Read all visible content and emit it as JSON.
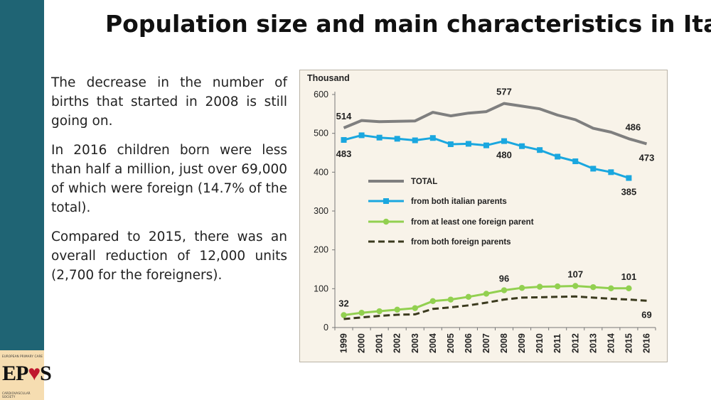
{
  "slide": {
    "title": "Population size and main characteristics in Italy",
    "paragraphs": [
      "The decrease in the number of births that started in 2008 is still going on.",
      "In 2016 children born were less than half a million, just over 69,000 of which were foreign (14.7% of the total).",
      "Compared to 2015, there was an overall reduction of 12,000 units (2,700 for the foreigners)."
    ],
    "logo": {
      "text": "EP",
      "heart": "♥",
      "text2": "S",
      "ring_top": "EUROPEAN PRIMARY CARE",
      "ring_bottom": "CARDIOVASCULAR SOCIETY"
    }
  },
  "colors": {
    "sidebar": "#1f6474",
    "total": "#7f7f7f",
    "italian": "#1aa7df",
    "foreign_one": "#92d050",
    "foreign_both": "#3b3a1e"
  },
  "chart_data": {
    "type": "line",
    "ylabel": "Thousand",
    "ylim": [
      0,
      600
    ],
    "yticks": [
      0,
      100,
      200,
      300,
      400,
      500,
      600
    ],
    "x": [
      "1999",
      "2000",
      "2001",
      "2002",
      "2003",
      "2004",
      "2005",
      "2006",
      "2007",
      "2008",
      "2009",
      "2010",
      "2011",
      "2012",
      "2013",
      "2014",
      "2015",
      "2016"
    ],
    "series": [
      {
        "name": "TOTAL",
        "color": "#7f7f7f",
        "marker": "none",
        "dash": "solid",
        "values": [
          514,
          533,
          530,
          531,
          532,
          554,
          545,
          552,
          556,
          577,
          570,
          563,
          547,
          535,
          513,
          503,
          486,
          473
        ]
      },
      {
        "name": "from both italian parents",
        "color": "#1aa7df",
        "marker": "square",
        "dash": "solid",
        "values": [
          483,
          495,
          489,
          486,
          482,
          488,
          472,
          473,
          469,
          480,
          467,
          457,
          440,
          428,
          409,
          400,
          385,
          null
        ]
      },
      {
        "name": "from at least one foreign parent",
        "color": "#92d050",
        "marker": "circle",
        "dash": "solid",
        "values": [
          32,
          38,
          42,
          46,
          50,
          68,
          72,
          79,
          87,
          96,
          102,
          105,
          106,
          107,
          104,
          101,
          101,
          null
        ]
      },
      {
        "name": "from both foreign parents",
        "color": "#3b3a1e",
        "marker": "none",
        "dash": "dashed",
        "values": [
          22,
          26,
          30,
          33,
          34,
          48,
          52,
          57,
          64,
          72,
          77,
          78,
          79,
          80,
          77,
          74,
          72,
          69
        ]
      }
    ],
    "annotations": [
      {
        "text": "514",
        "series": 0,
        "index": 0,
        "pos": "above"
      },
      {
        "text": "577",
        "series": 0,
        "index": 9,
        "pos": "above"
      },
      {
        "text": "486",
        "series": 0,
        "index": 16,
        "pos": "above-right"
      },
      {
        "text": "473",
        "series": 0,
        "index": 17,
        "pos": "below"
      },
      {
        "text": "483",
        "series": 1,
        "index": 0,
        "pos": "below"
      },
      {
        "text": "480",
        "series": 1,
        "index": 9,
        "pos": "below"
      },
      {
        "text": "385",
        "series": 1,
        "index": 16,
        "pos": "below"
      },
      {
        "text": "32",
        "series": 2,
        "index": 0,
        "pos": "above"
      },
      {
        "text": "96",
        "series": 2,
        "index": 9,
        "pos": "above"
      },
      {
        "text": "107",
        "series": 2,
        "index": 13,
        "pos": "above"
      },
      {
        "text": "101",
        "series": 2,
        "index": 16,
        "pos": "above"
      },
      {
        "text": "69",
        "series": 3,
        "index": 17,
        "pos": "below"
      }
    ],
    "legend": "inside-center-left",
    "grid": false
  }
}
